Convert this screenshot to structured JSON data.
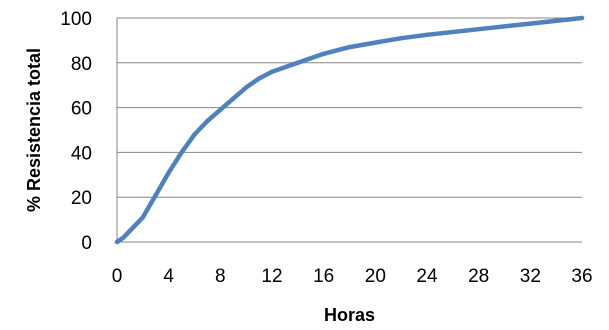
{
  "chart_data": {
    "type": "line",
    "title": "",
    "xlabel": "Horas",
    "ylabel": "% Resistencia total",
    "xlim": [
      0,
      36
    ],
    "ylim": [
      0,
      100
    ],
    "x_ticks": [
      0,
      4,
      8,
      12,
      16,
      20,
      24,
      28,
      32,
      36
    ],
    "y_ticks": [
      0,
      20,
      40,
      60,
      80,
      100
    ],
    "grid": "horizontal",
    "legend": "none",
    "series": [
      {
        "color": "#4F81BD",
        "x": [
          0,
          0.5,
          1,
          2,
          3,
          4,
          5,
          6,
          7,
          8,
          9,
          10,
          11,
          12,
          14,
          16,
          18,
          20,
          22,
          24,
          28,
          32,
          36
        ],
        "y": [
          0,
          2,
          5,
          11,
          21,
          31,
          40,
          48,
          54,
          59,
          64,
          69,
          73,
          76,
          80,
          84,
          87,
          89,
          91,
          92.5,
          95,
          97.5,
          100
        ]
      }
    ]
  }
}
